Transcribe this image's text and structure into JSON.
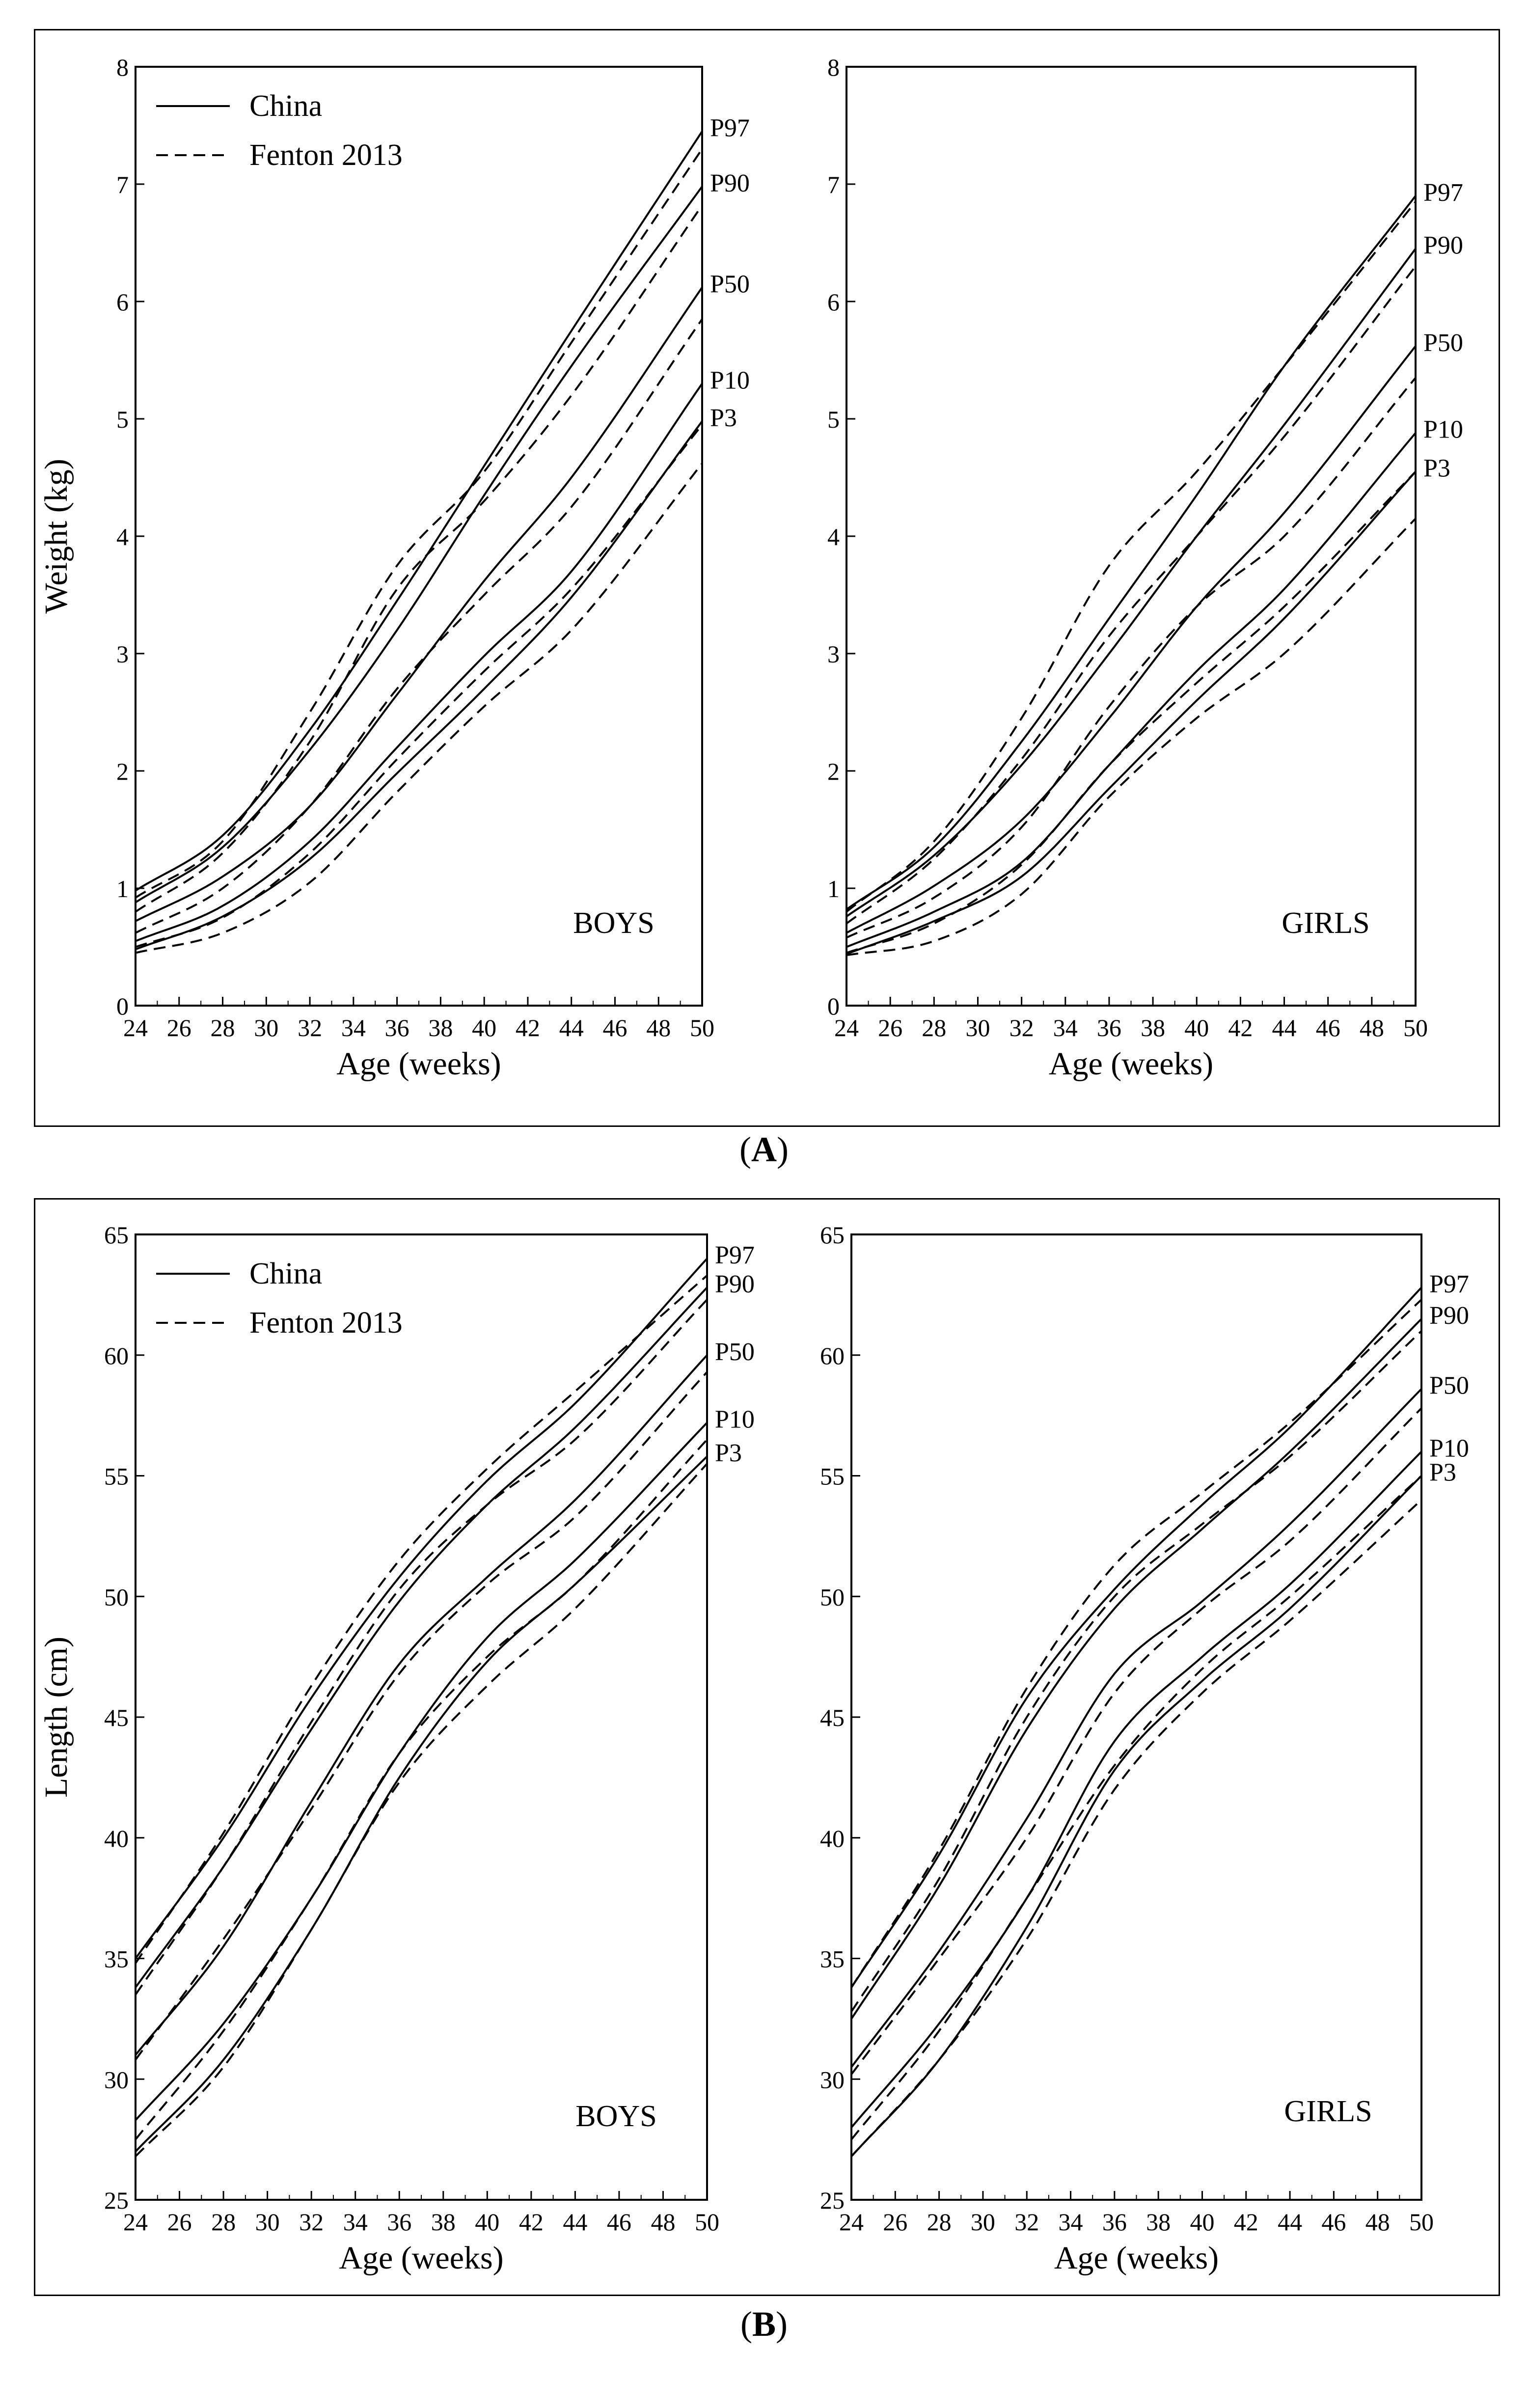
{
  "labels": {
    "panel_a": "A",
    "panel_b": "B"
  },
  "legend": {
    "solid": "China",
    "dashed": "Fenton 2013"
  },
  "percentile_labels": [
    "P97",
    "P90",
    "P50",
    "P10",
    "P3"
  ],
  "chart_data": [
    {
      "type": "line",
      "panel": "A",
      "sex_label": "BOYS",
      "xlabel": "Age (weeks)",
      "ylabel": "Weight (kg)",
      "xlim": [
        24,
        50
      ],
      "ylim": [
        0,
        8
      ],
      "xticks": [
        24,
        26,
        28,
        30,
        32,
        34,
        36,
        38,
        40,
        42,
        44,
        46,
        48,
        50
      ],
      "yticks": [
        0,
        1,
        2,
        3,
        4,
        5,
        6,
        7,
        8
      ],
      "x": [
        24,
        28,
        32,
        36,
        40,
        44,
        50
      ],
      "series": [
        {
          "name": "China P97",
          "style": "solid",
          "values": [
            0.98,
            1.45,
            2.35,
            3.45,
            4.6,
            5.75,
            7.45
          ]
        },
        {
          "name": "China P90",
          "style": "solid",
          "values": [
            0.88,
            1.35,
            2.18,
            3.2,
            4.35,
            5.45,
            6.98
          ]
        },
        {
          "name": "China P50",
          "style": "solid",
          "values": [
            0.72,
            1.1,
            1.7,
            2.65,
            3.62,
            4.5,
            6.12
          ]
        },
        {
          "name": "China P10",
          "style": "solid",
          "values": [
            0.55,
            0.85,
            1.4,
            2.2,
            2.98,
            3.7,
            5.3
          ]
        },
        {
          "name": "China P3",
          "style": "solid",
          "values": [
            0.48,
            0.76,
            1.25,
            1.98,
            2.7,
            3.48,
            4.98
          ]
        },
        {
          "name": "Fenton P97",
          "style": "dashed",
          "values": [
            0.92,
            1.4,
            2.5,
            3.75,
            4.55,
            5.65,
            7.3
          ]
        },
        {
          "name": "Fenton P90",
          "style": "dashed",
          "values": [
            0.8,
            1.3,
            2.25,
            3.55,
            4.3,
            5.2,
            6.82
          ]
        },
        {
          "name": "Fenton P50",
          "style": "dashed",
          "values": [
            0.62,
            1.0,
            1.7,
            2.7,
            3.5,
            4.25,
            5.85
          ]
        },
        {
          "name": "Fenton P10",
          "style": "dashed",
          "values": [
            0.5,
            0.75,
            1.3,
            2.1,
            2.85,
            3.55,
            4.95
          ]
        },
        {
          "name": "Fenton P3",
          "style": "dashed",
          "values": [
            0.45,
            0.62,
            1.05,
            1.82,
            2.55,
            3.2,
            4.62
          ]
        }
      ],
      "label_values": [
        7.45,
        6.98,
        6.12,
        5.3,
        4.98
      ]
    },
    {
      "type": "line",
      "panel": "A",
      "sex_label": "GIRLS",
      "xlabel": "Age (weeks)",
      "ylabel": "",
      "xlim": [
        24,
        50
      ],
      "ylim": [
        0,
        8
      ],
      "xticks": [
        24,
        26,
        28,
        30,
        32,
        34,
        36,
        38,
        40,
        42,
        44,
        46,
        48,
        50
      ],
      "yticks": [
        0,
        1,
        2,
        3,
        4,
        5,
        6,
        7,
        8
      ],
      "x": [
        24,
        28,
        32,
        36,
        40,
        44,
        50
      ],
      "series": [
        {
          "name": "China P97",
          "style": "solid",
          "values": [
            0.82,
            1.35,
            2.25,
            3.3,
            4.35,
            5.45,
            6.9
          ]
        },
        {
          "name": "China P90",
          "style": "solid",
          "values": [
            0.76,
            1.28,
            2.05,
            3.0,
            4.0,
            4.95,
            6.45
          ]
        },
        {
          "name": "China P50",
          "style": "solid",
          "values": [
            0.62,
            1.02,
            1.58,
            2.45,
            3.4,
            4.2,
            5.62
          ]
        },
        {
          "name": "China P10",
          "style": "solid",
          "values": [
            0.5,
            0.8,
            1.22,
            2.05,
            2.85,
            3.55,
            4.88
          ]
        },
        {
          "name": "China P3",
          "style": "solid",
          "values": [
            0.44,
            0.72,
            1.1,
            1.85,
            2.6,
            3.3,
            4.55
          ]
        },
        {
          "name": "Fenton P97",
          "style": "dashed",
          "values": [
            0.8,
            1.4,
            2.45,
            3.75,
            4.55,
            5.45,
            6.85
          ]
        },
        {
          "name": "Fenton P90",
          "style": "dashed",
          "values": [
            0.7,
            1.25,
            2.1,
            3.15,
            4.0,
            4.85,
            6.3
          ]
        },
        {
          "name": "Fenton P50",
          "style": "dashed",
          "values": [
            0.58,
            0.92,
            1.52,
            2.55,
            3.4,
            4.0,
            5.35
          ]
        },
        {
          "name": "Fenton P10",
          "style": "dashed",
          "values": [
            0.45,
            0.7,
            1.2,
            2.05,
            2.75,
            3.4,
            4.55
          ]
        },
        {
          "name": "Fenton P3",
          "style": "dashed",
          "values": [
            0.43,
            0.55,
            0.95,
            1.78,
            2.45,
            3.0,
            4.15
          ]
        }
      ],
      "label_values": [
        6.9,
        6.45,
        5.62,
        4.88,
        4.55
      ]
    },
    {
      "type": "line",
      "panel": "B",
      "sex_label": "BOYS",
      "xlabel": "Age (weeks)",
      "ylabel": "Length (cm)",
      "xlim": [
        24,
        50
      ],
      "ylim": [
        25,
        65
      ],
      "xticks": [
        24,
        26,
        28,
        30,
        32,
        34,
        36,
        38,
        40,
        42,
        44,
        46,
        48,
        50
      ],
      "yticks": [
        25,
        30,
        35,
        40,
        45,
        50,
        55,
        60,
        65
      ],
      "x": [
        24,
        28,
        32,
        36,
        40,
        44,
        50
      ],
      "series": [
        {
          "name": "China P97",
          "style": "solid",
          "values": [
            35.0,
            40.0,
            45.8,
            50.8,
            54.8,
            58.0,
            64.0
          ]
        },
        {
          "name": "China P90",
          "style": "solid",
          "values": [
            33.8,
            38.8,
            44.5,
            49.8,
            53.8,
            57.0,
            62.8
          ]
        },
        {
          "name": "China P50",
          "style": "solid",
          "values": [
            31.0,
            35.5,
            41.5,
            47.2,
            50.8,
            54.0,
            60.0
          ]
        },
        {
          "name": "China P10",
          "style": "solid",
          "values": [
            28.3,
            32.3,
            37.5,
            43.5,
            48.3,
            51.5,
            57.2
          ]
        },
        {
          "name": "China P3",
          "style": "solid",
          "values": [
            27.0,
            30.8,
            36.2,
            42.5,
            47.3,
            50.5,
            55.8
          ]
        },
        {
          "name": "Fenton P97",
          "style": "dashed",
          "values": [
            34.8,
            40.2,
            46.3,
            51.5,
            55.3,
            58.5,
            63.3
          ]
        },
        {
          "name": "Fenton P90",
          "style": "dashed",
          "values": [
            33.5,
            38.8,
            44.8,
            50.3,
            53.8,
            56.5,
            62.3
          ]
        },
        {
          "name": "Fenton P50",
          "style": "dashed",
          "values": [
            30.8,
            35.8,
            41.2,
            46.8,
            50.5,
            53.3,
            59.3
          ]
        },
        {
          "name": "Fenton P10",
          "style": "dashed",
          "values": [
            27.5,
            32.0,
            37.5,
            43.5,
            47.5,
            50.5,
            56.5
          ]
        },
        {
          "name": "Fenton P3",
          "style": "dashed",
          "values": [
            26.8,
            30.5,
            36.2,
            42.3,
            46.3,
            49.5,
            55.5
          ]
        }
      ],
      "label_values": [
        64.0,
        62.8,
        60.0,
        57.2,
        55.8
      ]
    },
    {
      "type": "line",
      "panel": "B",
      "sex_label": "GIRLS",
      "xlabel": "Age (weeks)",
      "ylabel": "",
      "xlim": [
        24,
        50
      ],
      "ylim": [
        25,
        65
      ],
      "xticks": [
        24,
        26,
        28,
        30,
        32,
        34,
        36,
        38,
        40,
        42,
        44,
        46,
        48,
        50
      ],
      "yticks": [
        25,
        30,
        35,
        40,
        45,
        50,
        55,
        60,
        65
      ],
      "x": [
        24,
        28,
        32,
        36,
        40,
        44,
        50
      ],
      "series": [
        {
          "name": "China P97",
          "style": "solid",
          "values": [
            33.8,
            39.3,
            45.8,
            50.3,
            53.8,
            57.0,
            62.8
          ]
        },
        {
          "name": "China P90",
          "style": "solid",
          "values": [
            32.5,
            38.0,
            44.5,
            49.5,
            52.8,
            56.0,
            61.5
          ]
        },
        {
          "name": "China P50",
          "style": "solid",
          "values": [
            30.5,
            35.3,
            40.8,
            46.8,
            49.8,
            53.0,
            58.6
          ]
        },
        {
          "name": "China P10",
          "style": "solid",
          "values": [
            28.0,
            32.3,
            37.5,
            44.0,
            47.5,
            50.5,
            56.0
          ]
        },
        {
          "name": "China P3",
          "style": "solid",
          "values": [
            26.8,
            30.8,
            36.3,
            42.8,
            46.5,
            49.5,
            55.0
          ]
        },
        {
          "name": "Fenton P97",
          "style": "dashed",
          "values": [
            33.8,
            39.5,
            46.2,
            51.3,
            54.3,
            57.2,
            62.3
          ]
        },
        {
          "name": "Fenton P90",
          "style": "dashed",
          "values": [
            32.8,
            38.3,
            45.0,
            50.0,
            53.0,
            55.8,
            61.0
          ]
        },
        {
          "name": "Fenton P50",
          "style": "dashed",
          "values": [
            30.2,
            35.0,
            40.0,
            46.0,
            49.5,
            52.3,
            57.8
          ]
        },
        {
          "name": "Fenton P10",
          "style": "dashed",
          "values": [
            27.5,
            32.0,
            37.5,
            43.0,
            47.0,
            50.0,
            55.0
          ]
        },
        {
          "name": "Fenton P3",
          "style": "dashed",
          "values": [
            26.8,
            30.8,
            35.8,
            42.0,
            46.0,
            49.0,
            54.0
          ]
        }
      ],
      "label_values": [
        62.8,
        61.5,
        58.6,
        56.0,
        55.0
      ]
    }
  ]
}
